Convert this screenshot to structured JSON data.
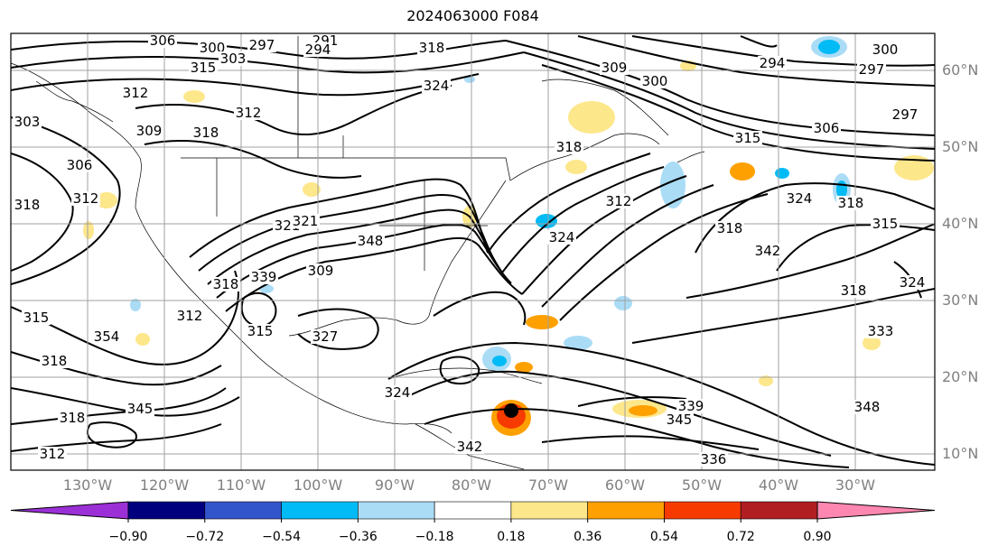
{
  "title": "2024063000 F084",
  "map": {
    "lon_labels": [
      "130°W",
      "120°W",
      "110°W",
      "100°W",
      "90°W",
      "80°W",
      "70°W",
      "60°W",
      "50°W",
      "40°W",
      "30°W"
    ],
    "lat_labels": [
      "60°N",
      "50°N",
      "40°N",
      "30°N",
      "20°N",
      "10°N"
    ],
    "contour_labels": [
      "306",
      "300",
      "297",
      "291",
      "303",
      "294",
      "318",
      "312",
      "315",
      "309",
      "300",
      "294",
      "300",
      "297",
      "324",
      "312",
      "318",
      "303",
      "309",
      "306",
      "297",
      "315",
      "306",
      "312",
      "318",
      "348",
      "318",
      "312",
      "321",
      "324",
      "318",
      "321",
      "324",
      "309",
      "339",
      "318",
      "312",
      "354",
      "315",
      "327",
      "324",
      "339",
      "315",
      "318",
      "345",
      "342",
      "336",
      "318",
      "345",
      "348",
      "342",
      "318",
      "333",
      "324",
      "318",
      "315",
      "312"
    ]
  },
  "colorbar": {
    "ticks": [
      "−0.90",
      "−0.72",
      "−0.54",
      "−0.36",
      "−0.18",
      "0.18",
      "0.36",
      "0.54",
      "0.72",
      "0.90"
    ],
    "colors": [
      "#9b30d6",
      "#00007f",
      "#3355cc",
      "#00bbf6",
      "#aadcf6",
      "#ffffff",
      "#fde78b",
      "#fea000",
      "#f73b00",
      "#b01e22",
      "#fd87b0"
    ]
  },
  "palette": {
    "frame": "#000000",
    "grid": "#a0a0a0",
    "label": "#808080"
  }
}
